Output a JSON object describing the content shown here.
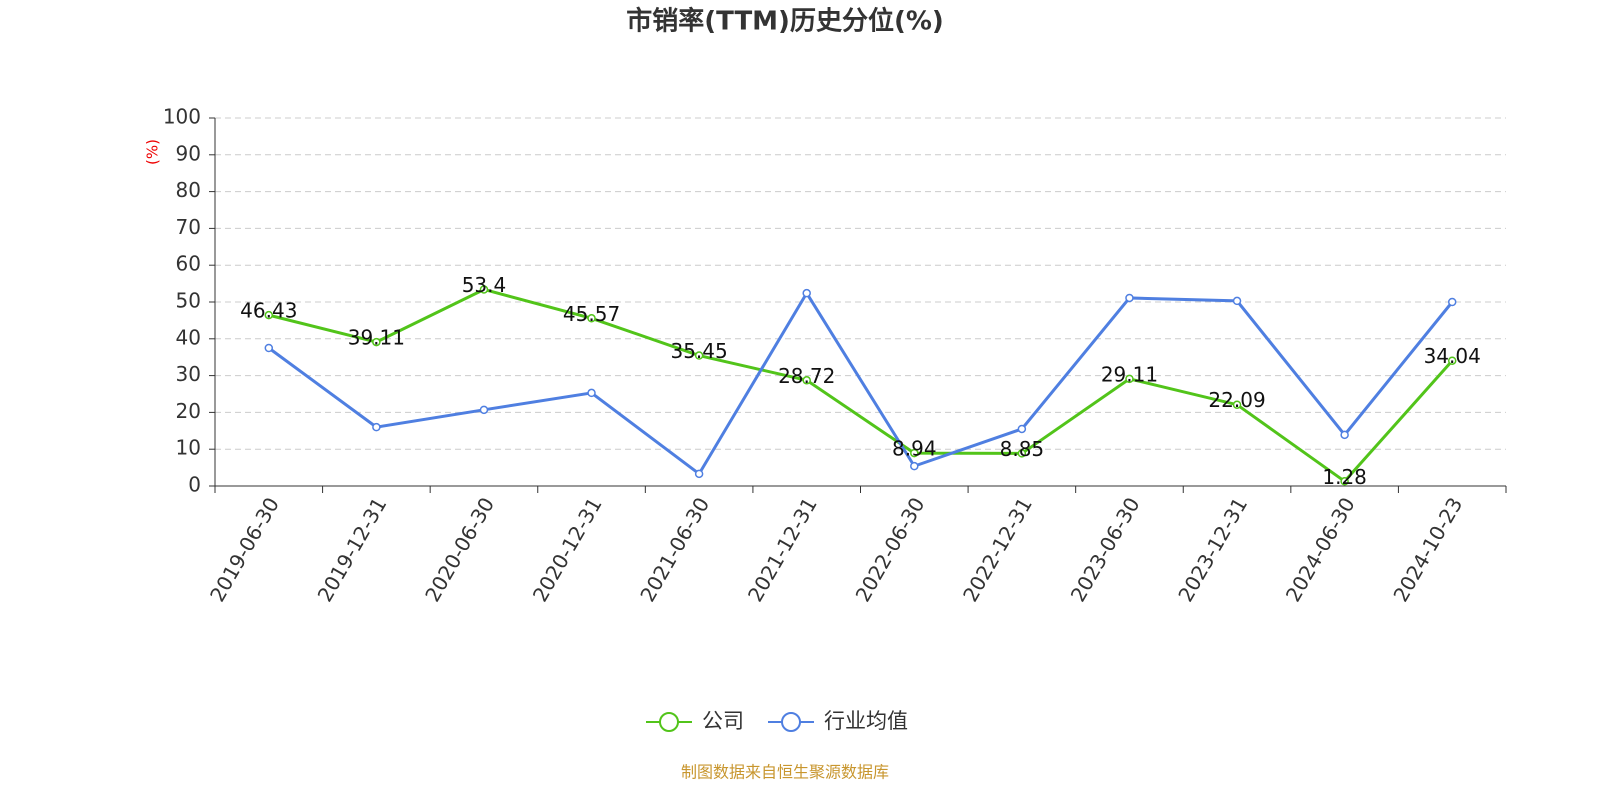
{
  "chart_data": {
    "type": "line",
    "title": "市销率(TTM)历史分位(%)",
    "y_label": "(%)",
    "categories": [
      "2019-06-30",
      "2019-12-31",
      "2020-06-30",
      "2020-12-31",
      "2021-06-30",
      "2021-12-31",
      "2022-06-30",
      "2022-12-31",
      "2023-06-30",
      "2023-12-31",
      "2024-06-30",
      "2024-10-23"
    ],
    "series": [
      {
        "name": "公司",
        "color": "#52c41a",
        "values": [
          46.43,
          39.11,
          53.4,
          45.57,
          35.45,
          28.72,
          8.94,
          8.85,
          29.11,
          22.09,
          1.28,
          34.04
        ],
        "data_labels": true
      },
      {
        "name": "行业均值",
        "color": "#4f7fe1",
        "values": [
          37.5,
          16.0,
          20.7,
          25.3,
          3.3,
          52.4,
          5.4,
          15.5,
          51.1,
          50.3,
          13.9,
          50.0
        ],
        "data_labels": false
      }
    ],
    "ylim": [
      0,
      100
    ],
    "yticks": [
      0,
      10,
      20,
      30,
      40,
      50,
      60,
      70,
      80,
      90,
      100
    ],
    "grid": true,
    "legend": "bottom",
    "source": "制图数据来自恒生聚源数据库"
  }
}
